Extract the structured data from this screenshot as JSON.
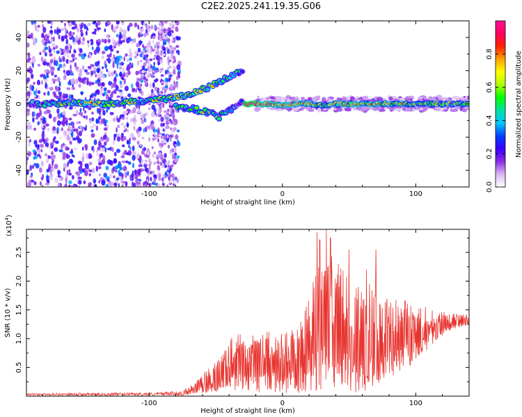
{
  "title": "C2E2.2025.241.19.35.G06",
  "colors": {
    "snr_line": "#e8342f",
    "axis": "#000000",
    "background": "#ffffff"
  },
  "chart_data": [
    {
      "type": "heatmap",
      "name": "spectrogram",
      "xlabel": "Height of straight line (km)",
      "ylabel": "Frequency (Hz)",
      "xlim": [
        -192,
        140
      ],
      "ylim": [
        -50,
        50
      ],
      "xticks": [
        -100,
        0,
        100
      ],
      "yticks": [
        -40,
        -20,
        0,
        20,
        40
      ],
      "colorbar": {
        "label": "Normalized spectral amplitude",
        "range": [
          0,
          1
        ],
        "ticks": [
          "0.0",
          "0.2",
          "0.4",
          "0.6",
          "0.8"
        ],
        "colormap": [
          "#ffffff",
          "#d9b8f5",
          "#8a2be2",
          "#3a00ff",
          "#0040ff",
          "#00c8ff",
          "#00e0a0",
          "#00ff00",
          "#b0ff00",
          "#ffff00",
          "#ffa000",
          "#ff2000",
          "#ff0060",
          "#ff1493"
        ]
      },
      "main_tone": {
        "points": [
          {
            "x": -190,
            "y": 0,
            "a": 0.3
          },
          {
            "x": -175,
            "y": 0,
            "a": 0.45
          },
          {
            "x": -160,
            "y": 1,
            "a": 0.5
          },
          {
            "x": -145,
            "y": 0,
            "a": 0.55
          },
          {
            "x": -130,
            "y": 0,
            "a": 0.45
          },
          {
            "x": -115,
            "y": 1,
            "a": 0.5
          },
          {
            "x": -100,
            "y": 2,
            "a": 0.45
          },
          {
            "x": -85,
            "y": 3,
            "a": 0.55
          },
          {
            "x": -70,
            "y": 6,
            "a": 0.5
          },
          {
            "x": -58,
            "y": 9,
            "a": 0.55
          },
          {
            "x": -48,
            "y": 13,
            "a": 0.5
          },
          {
            "x": -38,
            "y": 17,
            "a": 0.45
          },
          {
            "x": -30,
            "y": 20,
            "a": 0.4
          }
        ],
        "secondary": [
          {
            "x": -80,
            "y": -1,
            "a": 0.4
          },
          {
            "x": -70,
            "y": -3,
            "a": 0.45
          },
          {
            "x": -58,
            "y": -4,
            "a": 0.5
          },
          {
            "x": -48,
            "y": -8,
            "a": 0.45
          },
          {
            "x": -40,
            "y": -4,
            "a": 0.4
          },
          {
            "x": -30,
            "y": 2,
            "a": 0.35
          }
        ],
        "after": [
          {
            "x": -28,
            "y": 0,
            "a": 0.9
          },
          {
            "x": -20,
            "y": 0,
            "a": 0.95
          },
          {
            "x": -10,
            "y": 0,
            "a": 0.85
          },
          {
            "x": 0,
            "y": -1,
            "a": 0.8
          },
          {
            "x": 10,
            "y": 0,
            "a": 0.75
          },
          {
            "x": 20,
            "y": 0,
            "a": 0.65
          },
          {
            "x": 30,
            "y": -1,
            "a": 0.55
          },
          {
            "x": 40,
            "y": 0,
            "a": 0.6
          },
          {
            "x": 50,
            "y": 0,
            "a": 0.7
          },
          {
            "x": 60,
            "y": 0,
            "a": 0.65
          },
          {
            "x": 70,
            "y": 0,
            "a": 0.75
          },
          {
            "x": 80,
            "y": 0,
            "a": 0.6
          },
          {
            "x": 90,
            "y": 0,
            "a": 0.7
          },
          {
            "x": 100,
            "y": 0,
            "a": 0.55
          },
          {
            "x": 110,
            "y": 0,
            "a": 0.65
          },
          {
            "x": 120,
            "y": 0,
            "a": 0.6
          },
          {
            "x": 130,
            "y": 0,
            "a": 0.55
          },
          {
            "x": 140,
            "y": 0,
            "a": 0.5
          }
        ]
      }
    },
    {
      "type": "line",
      "name": "snr",
      "xlabel": "Height of straight line (km)",
      "ylabel": "SNR (10 * v/v)",
      "y_scale_label": "(x10",
      "y_scale_exp": "4",
      "y_scale_close": ")",
      "xlim": [
        -192,
        140
      ],
      "ylim": [
        0,
        2.9
      ],
      "xticks": [
        -100,
        0,
        100
      ],
      "yticks": [
        0.5,
        1.0,
        1.5,
        2.0,
        2.5
      ],
      "ytick_labels": [
        "0.5",
        "1.0",
        "1.5",
        "2.0",
        "2.5"
      ],
      "envelope": [
        {
          "x": -192,
          "y": 0.03
        },
        {
          "x": -100,
          "y": 0.04
        },
        {
          "x": -75,
          "y": 0.07
        },
        {
          "x": -65,
          "y": 0.25
        },
        {
          "x": -55,
          "y": 0.5
        },
        {
          "x": -45,
          "y": 0.75
        },
        {
          "x": -35,
          "y": 1.15
        },
        {
          "x": -25,
          "y": 1.05
        },
        {
          "x": -15,
          "y": 1.2
        },
        {
          "x": -5,
          "y": 1.05
        },
        {
          "x": 5,
          "y": 1.15
        },
        {
          "x": 15,
          "y": 1.4
        },
        {
          "x": 25,
          "y": 2.2
        },
        {
          "x": 35,
          "y": 2.5
        },
        {
          "x": 45,
          "y": 2.2
        },
        {
          "x": 55,
          "y": 1.9
        },
        {
          "x": 65,
          "y": 2.0
        },
        {
          "x": 75,
          "y": 1.7
        },
        {
          "x": 85,
          "y": 1.7
        },
        {
          "x": 95,
          "y": 1.65
        },
        {
          "x": 105,
          "y": 1.6
        },
        {
          "x": 115,
          "y": 1.5
        },
        {
          "x": 125,
          "y": 1.45
        },
        {
          "x": 140,
          "y": 1.45
        }
      ],
      "floor": [
        {
          "x": -192,
          "y": 0.01
        },
        {
          "x": -75,
          "y": 0.01
        },
        {
          "x": -60,
          "y": 0.05
        },
        {
          "x": -40,
          "y": 0.1
        },
        {
          "x": -20,
          "y": 0.05
        },
        {
          "x": 0,
          "y": 0.05
        },
        {
          "x": 20,
          "y": 0.05
        },
        {
          "x": 40,
          "y": 0.05
        },
        {
          "x": 60,
          "y": 0.05
        },
        {
          "x": 80,
          "y": 0.3
        },
        {
          "x": 100,
          "y": 0.6
        },
        {
          "x": 120,
          "y": 1.05
        },
        {
          "x": 140,
          "y": 1.25
        }
      ],
      "peaks": [
        {
          "x": 26,
          "y": 2.85
        },
        {
          "x": 28,
          "y": 2.72
        },
        {
          "x": 33,
          "y": 2.9
        },
        {
          "x": 36,
          "y": 2.75
        },
        {
          "x": 42,
          "y": 2.3
        },
        {
          "x": 50,
          "y": 2.55
        },
        {
          "x": 70,
          "y": 2.55
        },
        {
          "x": 63,
          "y": 2.2
        }
      ]
    }
  ]
}
